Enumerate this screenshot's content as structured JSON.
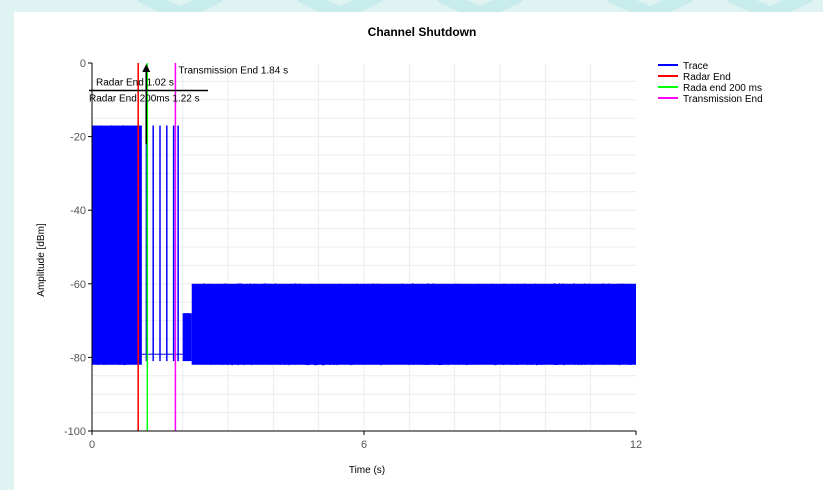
{
  "chart_data": {
    "type": "line",
    "title": "Channel Shutdown",
    "xlabel": "Time (s)",
    "ylabel": "Amplitude [dBm]",
    "xlim": [
      0,
      12
    ],
    "ylim": [
      -100,
      0
    ],
    "x_ticks": [
      0,
      6,
      12
    ],
    "y_ticks": [
      0,
      -20,
      -40,
      -60,
      -80,
      -100
    ],
    "grid": true,
    "legend_position": "top-right",
    "series": [
      {
        "name": "Trace",
        "color": "#0000ff",
        "segments": [
          {
            "x_start": 0.0,
            "x_end": 1.1,
            "y_low": -82,
            "y_high": -17
          },
          {
            "x_start": 1.1,
            "x_end": 2.0,
            "y_low": -79,
            "y_high": -79
          },
          {
            "x_start": 2.0,
            "x_end": 2.2,
            "y_low": -81,
            "y_high": -68
          },
          {
            "x_start": 2.2,
            "x_end": 12.0,
            "y_low": -82,
            "y_high": -60
          }
        ],
        "bursts": [
          {
            "x": 1.2,
            "y_high": -17
          },
          {
            "x": 1.35,
            "y_high": -17
          },
          {
            "x": 1.5,
            "y_high": -17
          },
          {
            "x": 1.65,
            "y_high": -17
          },
          {
            "x": 1.8,
            "y_high": -17
          },
          {
            "x": 1.9,
            "y_high": -17
          },
          {
            "x": 2.05,
            "y_high": -68
          },
          {
            "x": 2.12,
            "y_high": -68
          }
        ]
      },
      {
        "name": "Radar End",
        "color": "#ff0000",
        "x": 1.02
      },
      {
        "name": "Rada end 200 ms",
        "color": "#00ff00",
        "x": 1.22
      },
      {
        "name": "Transmission End",
        "color": "#ff00ff",
        "x": 1.84
      }
    ],
    "annotations": [
      {
        "text": "Transmission End 1.84 s",
        "x": 1.84,
        "y": -2
      },
      {
        "text": "Radar End 1.02 s",
        "x": 1.02,
        "y": -5
      },
      {
        "text": "Radar End 200ms 1.22 s",
        "x": 1.22,
        "y": -8
      }
    ]
  }
}
